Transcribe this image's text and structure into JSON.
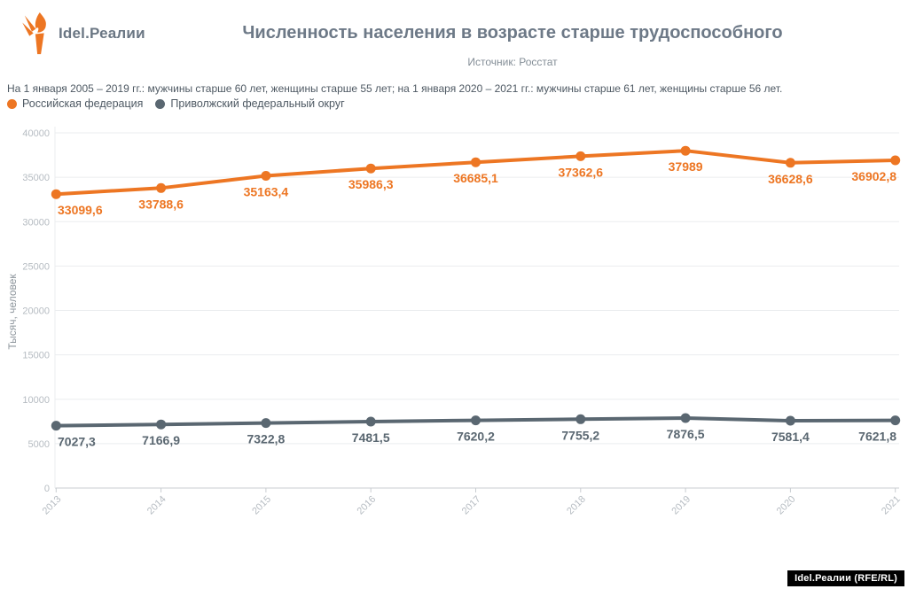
{
  "brand": {
    "logo_text": "Idel.Реалии",
    "watermark": "Idel.Реалии (RFE/RL)"
  },
  "header": {
    "title": "Численность населения в возрасте старше трудоспособного",
    "subtitle": "Источник: Росстат"
  },
  "note": "На 1 января 2005 – 2019 гг.: мужчины старше 60 лет, женщины старше 55 лет; на 1 января 2020 – 2021 гг.: мужчины старше 61 лет, женщины старше 56 лет.",
  "legend": [
    {
      "label": "Российская федерация",
      "color": "#ED7623"
    },
    {
      "label": "Приволжский федеральный округ",
      "color": "#5A6771"
    }
  ],
  "colors": {
    "title": "#6D7987",
    "note_text": "#4E5963",
    "tick_label": "#B6BCC2",
    "gridline": "#EBEDEF",
    "axis_line": "#C9CDD1",
    "series_rf": "#ED7623",
    "series_pfo": "#5A6771",
    "watermark_bg": "#000000",
    "watermark_text": "#FFFFFF"
  },
  "chart_data": {
    "type": "line",
    "title": "Численность населения в возрасте старше трудоспособного",
    "subtitle": "Источник: Росстат",
    "xlabel": "",
    "ylabel": "Тысяч, человек",
    "x": [
      "2013",
      "2014",
      "2015",
      "2016",
      "2017",
      "2018",
      "2019",
      "2020",
      "2021"
    ],
    "ylim": [
      0,
      40000
    ],
    "yticks": [
      0,
      5000,
      10000,
      15000,
      20000,
      25000,
      30000,
      35000,
      40000
    ],
    "ytick_labels": [
      "0",
      "5000",
      "10000",
      "15000",
      "20000",
      "25000",
      "30000",
      "35000",
      "40000"
    ],
    "grid": true,
    "legend_position": "top-left",
    "series": [
      {
        "name": "Российская федерация",
        "color": "#ED7623",
        "values": [
          33099.6,
          33788.6,
          35163.4,
          35986.3,
          36685.1,
          37362.6,
          37989,
          36628.6,
          36902.8
        ],
        "value_labels": [
          "33099,6",
          "33788,6",
          "35163,4",
          "35986,3",
          "36685,1",
          "37362,6",
          "37989",
          "36628,6",
          "36902,8"
        ]
      },
      {
        "name": "Приволжский федеральный округ",
        "color": "#5A6771",
        "values": [
          7027.3,
          7166.9,
          7322.8,
          7481.5,
          7620.2,
          7755.2,
          7876.5,
          7581.4,
          7621.8
        ],
        "value_labels": [
          "7027,3",
          "7166,9",
          "7322,8",
          "7481,5",
          "7620,2",
          "7755,2",
          "7876,5",
          "7581,4",
          "7621,8"
        ]
      }
    ]
  }
}
